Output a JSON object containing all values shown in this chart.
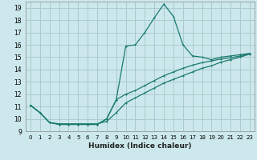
{
  "xlabel": "Humidex (Indice chaleur)",
  "background_color": "#cce8ec",
  "grid_color": "#aacccc",
  "line_color": "#1a7a6e",
  "xlim": [
    -0.5,
    23.5
  ],
  "ylim": [
    9,
    19.5
  ],
  "yticks": [
    9,
    10,
    11,
    12,
    13,
    14,
    15,
    16,
    17,
    18,
    19
  ],
  "xticks": [
    0,
    1,
    2,
    3,
    4,
    5,
    6,
    7,
    8,
    9,
    10,
    11,
    12,
    13,
    14,
    15,
    16,
    17,
    18,
    19,
    20,
    21,
    22,
    23
  ],
  "line1_x": [
    0,
    1,
    2,
    3,
    4,
    5,
    6,
    7,
    8,
    9,
    10,
    11,
    12,
    13,
    14,
    15,
    16,
    17,
    18,
    19,
    20,
    21,
    22,
    23
  ],
  "line1_y": [
    11.1,
    10.5,
    9.7,
    9.55,
    9.55,
    9.55,
    9.55,
    9.55,
    10.0,
    11.55,
    15.9,
    16.0,
    17.0,
    18.2,
    19.3,
    18.3,
    16.0,
    15.1,
    15.0,
    14.8,
    15.0,
    15.1,
    15.2,
    15.3
  ],
  "line2_x": [
    0,
    1,
    2,
    3,
    4,
    5,
    6,
    7,
    8,
    9,
    10,
    11,
    12,
    13,
    14,
    15,
    16,
    17,
    18,
    19,
    20,
    21,
    22,
    23
  ],
  "line2_y": [
    11.1,
    10.5,
    9.7,
    9.55,
    9.55,
    9.55,
    9.55,
    9.55,
    10.0,
    11.55,
    12.0,
    12.3,
    12.7,
    13.1,
    13.5,
    13.8,
    14.1,
    14.35,
    14.55,
    14.7,
    14.85,
    14.95,
    15.1,
    15.3
  ],
  "line3_x": [
    0,
    1,
    2,
    3,
    4,
    5,
    6,
    7,
    8,
    9,
    10,
    11,
    12,
    13,
    14,
    15,
    16,
    17,
    18,
    19,
    20,
    21,
    22,
    23
  ],
  "line3_y": [
    11.1,
    10.5,
    9.7,
    9.6,
    9.6,
    9.6,
    9.6,
    9.6,
    9.8,
    10.5,
    11.3,
    11.7,
    12.1,
    12.5,
    12.9,
    13.2,
    13.5,
    13.8,
    14.1,
    14.3,
    14.6,
    14.8,
    15.0,
    15.25
  ]
}
